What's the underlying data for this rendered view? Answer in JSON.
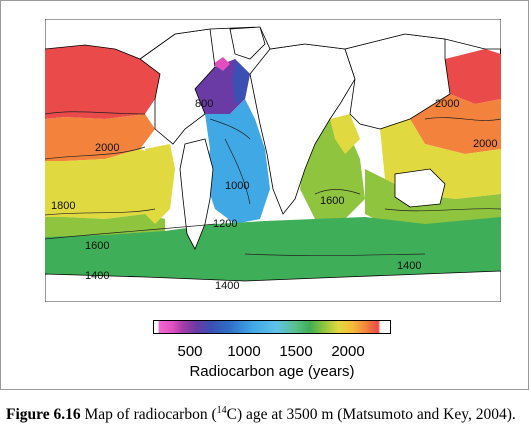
{
  "figure": {
    "number_label": "Figure 6.16",
    "caption_before_sup": " Map of radiocarbon (",
    "caption_sup": "14",
    "caption_after_sup": "C) age at 3500 m (Matsumoto and Key, 2004)."
  },
  "map": {
    "contour_labels": [
      "800",
      "2000",
      "2000",
      "2000",
      "1000",
      "1200",
      "1800",
      "1600",
      "1600",
      "1400",
      "1400",
      "1400"
    ]
  },
  "colorbar": {
    "ticks": [
      "500",
      "1000",
      "1500",
      "2000"
    ],
    "label": "Radiocarbon age (years)",
    "colors": [
      "#e14fbf",
      "#6a3aa5",
      "#2f6fc9",
      "#5fc3e8",
      "#3fae58",
      "#e1d940",
      "#f2823c",
      "#ea4a4a"
    ]
  }
}
